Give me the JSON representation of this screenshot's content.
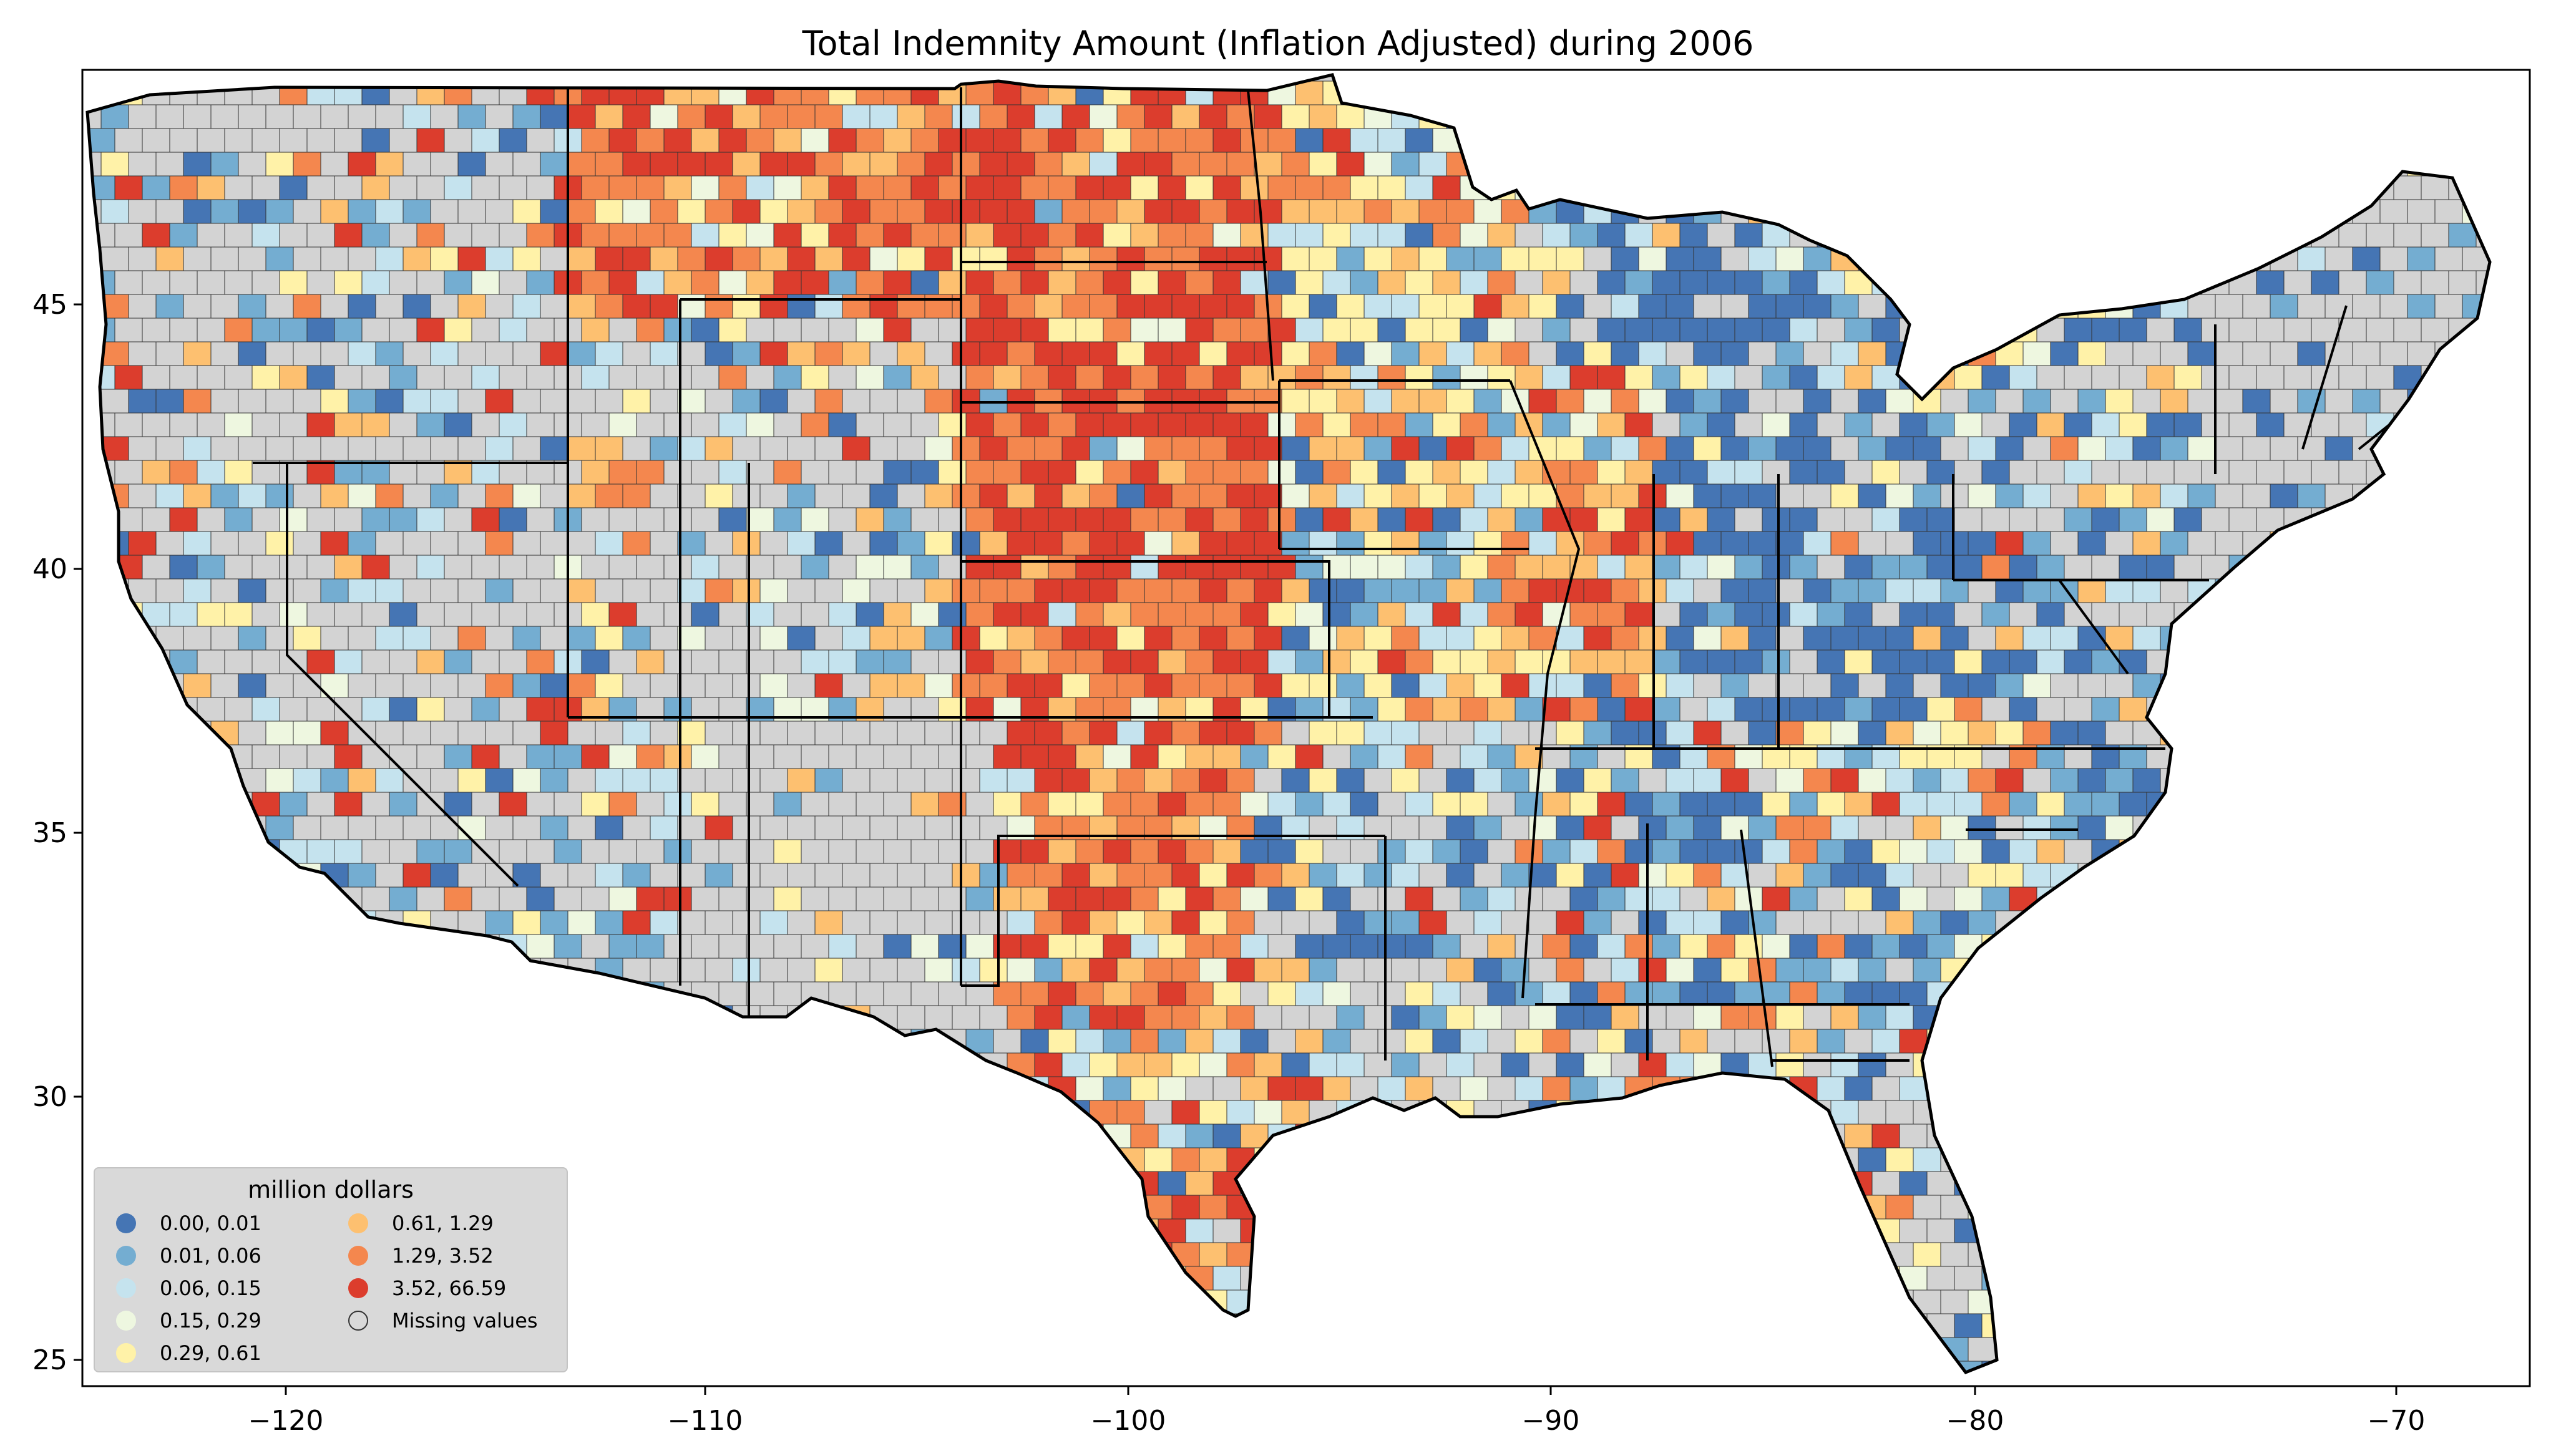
{
  "title": "Total Indemnity Amount  (Inflation Adjusted) during 2006",
  "x_ticks": [
    "−120",
    "−110",
    "−100",
    "−90",
    "−80",
    "−70"
  ],
  "y_ticks": [
    "25",
    "30",
    "35",
    "40",
    "45"
  ],
  "legend": {
    "title": "million dollars",
    "items": [
      {
        "label": "0.00,  0.01",
        "color": "#4575b4"
      },
      {
        "label": "0.01,  0.06",
        "color": "#74add1"
      },
      {
        "label": "0.06,  0.15",
        "color": "#c5e3ee"
      },
      {
        "label": "0.15,  0.29",
        "color": "#eef7e0"
      },
      {
        "label": "0.29,  0.61",
        "color": "#fff2a8"
      },
      {
        "label": "0.61,  1.29",
        "color": "#fdc070"
      },
      {
        "label": "1.29,  3.52",
        "color": "#f4874e"
      },
      {
        "label": "3.52, 66.59",
        "color": "#dc3d2d"
      },
      {
        "label": "Missing values",
        "color": "#d3d3d3"
      }
    ]
  },
  "colors": {
    "missing": "#d3d3d3",
    "background": "#ffffff"
  }
}
